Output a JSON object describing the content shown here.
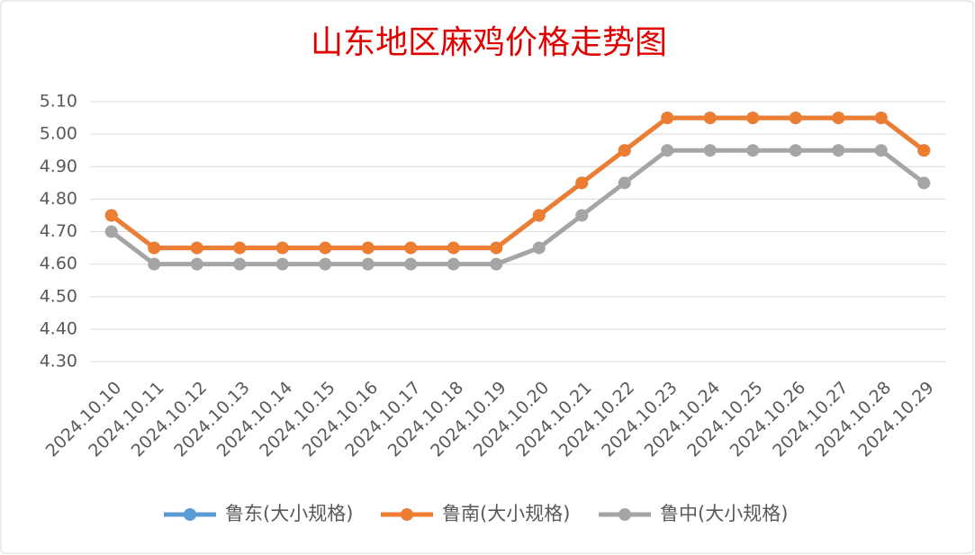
{
  "chart_data": {
    "type": "line",
    "title": "山东地区麻鸡价格走势图",
    "categories": [
      "2024.10.10",
      "2024.10.11",
      "2024.10.12",
      "2024.10.13",
      "2024.10.14",
      "2024.10.15",
      "2024.10.16",
      "2024.10.17",
      "2024.10.18",
      "2024.10.19",
      "2024.10.20",
      "2024.10.21",
      "2024.10.22",
      "2024.10.23",
      "2024.10.24",
      "2024.10.25",
      "2024.10.26",
      "2024.10.27",
      "2024.10.28",
      "2024.10.29"
    ],
    "series": [
      {
        "name": "鲁东(大小规格)",
        "color": "#5b9bd5",
        "values": [
          4.75,
          4.65,
          4.65,
          4.65,
          4.65,
          4.65,
          4.65,
          4.65,
          4.65,
          4.65,
          4.75,
          4.85,
          4.95,
          5.05,
          5.05,
          5.05,
          5.05,
          5.05,
          5.05,
          4.95
        ]
      },
      {
        "name": "鲁南(大小规格)",
        "color": "#ed7d31",
        "values": [
          4.75,
          4.65,
          4.65,
          4.65,
          4.65,
          4.65,
          4.65,
          4.65,
          4.65,
          4.65,
          4.75,
          4.85,
          4.95,
          5.05,
          5.05,
          5.05,
          5.05,
          5.05,
          5.05,
          4.95
        ]
      },
      {
        "name": "鲁中(大小规格)",
        "color": "#a5a5a5",
        "values": [
          4.7,
          4.6,
          4.6,
          4.6,
          4.6,
          4.6,
          4.6,
          4.6,
          4.6,
          4.6,
          4.65,
          4.75,
          4.85,
          4.95,
          4.95,
          4.95,
          4.95,
          4.95,
          4.95,
          4.85
        ]
      }
    ],
    "ylim": [
      4.3,
      5.1
    ],
    "yticks": [
      {
        "value": 4.3,
        "label": "4.30"
      },
      {
        "value": 4.4,
        "label": "4.40"
      },
      {
        "value": 4.5,
        "label": "4.50"
      },
      {
        "value": 4.6,
        "label": "4.60"
      },
      {
        "value": 4.7,
        "label": "4.70"
      },
      {
        "value": 4.8,
        "label": "4.80"
      },
      {
        "value": 4.9,
        "label": "4.90"
      },
      {
        "value": 5.0,
        "label": "5.00"
      },
      {
        "value": 5.1,
        "label": "5.10"
      }
    ],
    "grid": true,
    "legend": "bottom"
  }
}
